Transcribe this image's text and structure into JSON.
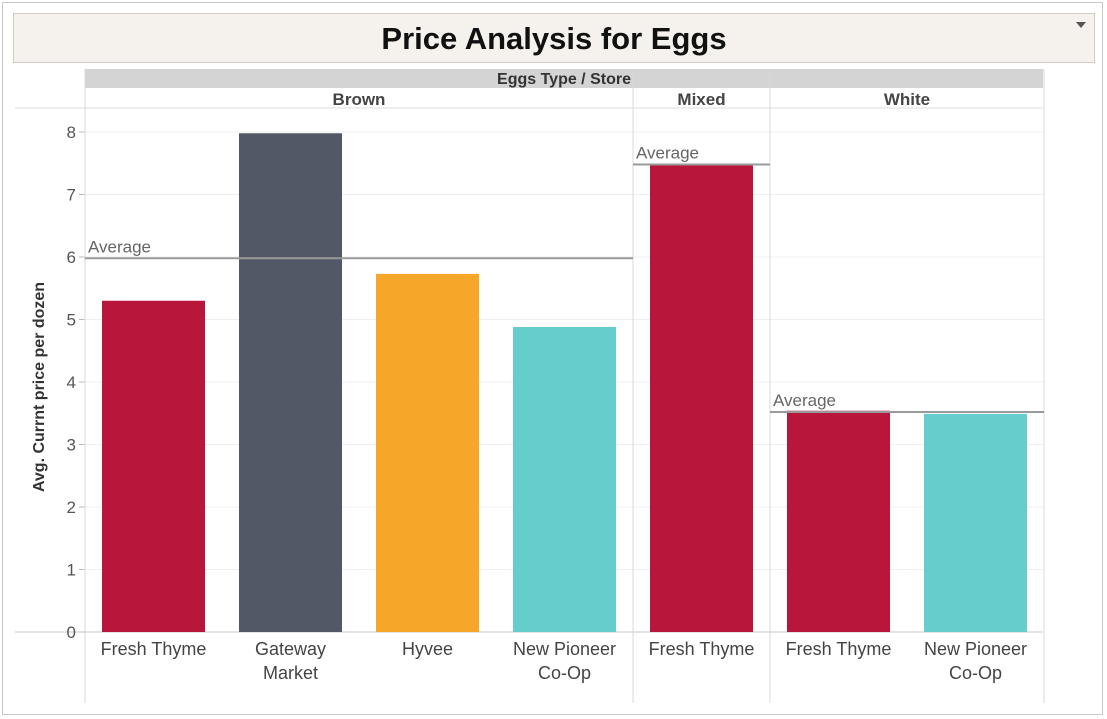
{
  "title": "Price Analysis for Eggs",
  "chart_data": {
    "type": "bar",
    "header_label": "Eggs Type  /  Store",
    "ylabel": "Avg. Currnt price per dozen",
    "ylim": [
      0,
      8
    ],
    "y_ticks": [
      "0",
      "1",
      "2",
      "3",
      "4",
      "5",
      "6",
      "7",
      "8"
    ],
    "grid": true,
    "reference_line_label": "Average",
    "groups": [
      {
        "name": "Brown",
        "average": 5.98,
        "bars": [
          {
            "label": [
              "Fresh Thyme"
            ],
            "value": 5.3,
            "color": "#b8163a"
          },
          {
            "label": [
              "Gateway",
              "Market"
            ],
            "value": 7.98,
            "color": "#525866"
          },
          {
            "label": [
              "Hyvee"
            ],
            "value": 5.73,
            "color": "#f6a72a"
          },
          {
            "label": [
              "New Pioneer",
              "Co-Op"
            ],
            "value": 4.88,
            "color": "#66cccc"
          }
        ]
      },
      {
        "name": "Mixed",
        "average": 7.48,
        "bars": [
          {
            "label": [
              "Fresh Thyme"
            ],
            "value": 7.48,
            "color": "#b8163a"
          }
        ]
      },
      {
        "name": "White",
        "average": 3.52,
        "bars": [
          {
            "label": [
              "Fresh Thyme"
            ],
            "value": 3.54,
            "color": "#b8163a"
          },
          {
            "label": [
              "New Pioneer",
              "Co-Op"
            ],
            "value": 3.49,
            "color": "#66cccc"
          }
        ]
      }
    ]
  }
}
